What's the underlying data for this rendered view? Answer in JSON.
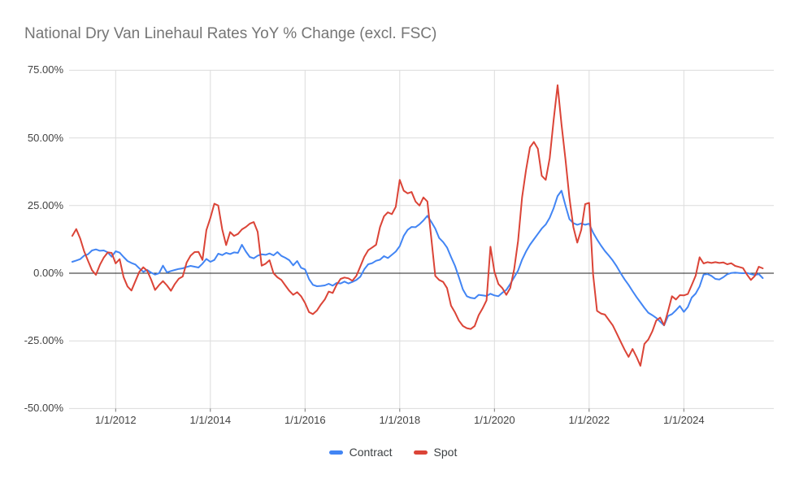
{
  "page": {
    "title": "National Dry Van Linehaul Rates YoY % Change (excl. FSC)"
  },
  "chart_data": {
    "type": "line",
    "title": "National Dry Van Linehaul Rates YoY % Change (excl. FSC)",
    "unit": "% year-over-year change",
    "frequency": "monthly",
    "start_month": "2011-02",
    "end_month": "2025-09",
    "grid": true,
    "ylim": [
      -50,
      75
    ],
    "legend_position": "bottom",
    "colors": {
      "contract": "#4285f4",
      "spot": "#db4437",
      "zero_line": "#212121",
      "gridline": "#dcdcdc",
      "title_text": "#757575",
      "axis_text": "#424242"
    },
    "y_axis": {
      "ticks": [
        {
          "value": 75,
          "label": "75.00%"
        },
        {
          "value": 50,
          "label": "50.00%"
        },
        {
          "value": 25,
          "label": "25.00%"
        },
        {
          "value": 0,
          "label": "0.00%"
        },
        {
          "value": -25,
          "label": "-25.00%"
        },
        {
          "value": -50,
          "label": "-50.00%"
        }
      ]
    },
    "x_axis": {
      "ticks": [
        {
          "label": "1/1/2012",
          "month_index": 11
        },
        {
          "label": "1/1/2014",
          "month_index": 35
        },
        {
          "label": "1/1/2016",
          "month_index": 59
        },
        {
          "label": "1/1/2018",
          "month_index": 83
        },
        {
          "label": "1/1/2020",
          "month_index": 107
        },
        {
          "label": "1/1/2022",
          "month_index": 131
        },
        {
          "label": "1/1/2024",
          "month_index": 155
        }
      ]
    },
    "series": [
      {
        "name": "Contract",
        "color": "#4285f4",
        "values": [
          4.2,
          4.7,
          5.2,
          6.5,
          7.0,
          8.4,
          8.8,
          8.3,
          8.4,
          7.7,
          6.1,
          8.1,
          7.6,
          6.0,
          4.5,
          3.8,
          3.2,
          1.8,
          0.5,
          1.2,
          0.2,
          -0.5,
          0.0,
          2.8,
          0.3,
          0.8,
          1.2,
          1.6,
          1.8,
          2.3,
          2.7,
          2.4,
          2.1,
          3.5,
          5.3,
          4.2,
          4.9,
          7.2,
          6.7,
          7.5,
          7.1,
          7.7,
          7.5,
          10.5,
          8.0,
          6.0,
          5.5,
          6.5,
          7.0,
          6.8,
          7.3,
          6.6,
          7.8,
          6.4,
          5.7,
          4.8,
          2.9,
          4.5,
          2.0,
          1.4,
          -2.2,
          -4.3,
          -4.8,
          -4.7,
          -4.5,
          -3.9,
          -4.6,
          -3.6,
          -3.8,
          -3.1,
          -3.8,
          -3.2,
          -2.5,
          -1.3,
          1.4,
          3.3,
          3.7,
          4.6,
          5.0,
          6.3,
          5.6,
          6.8,
          8.0,
          10.0,
          13.8,
          16.0,
          17.1,
          17.0,
          18.1,
          19.5,
          21.2,
          19.0,
          16.5,
          13.0,
          11.5,
          9.5,
          6.0,
          2.7,
          -1.5,
          -6.0,
          -8.5,
          -9.1,
          -9.3,
          -8.0,
          -8.2,
          -8.4,
          -7.6,
          -8.2,
          -8.5,
          -7.2,
          -6.2,
          -4.0,
          -1.5,
          1.0,
          5.0,
          8.0,
          10.5,
          12.5,
          14.5,
          16.5,
          18.0,
          20.5,
          24.0,
          28.5,
          30.5,
          25.0,
          20.0,
          18.5,
          17.9,
          18.4,
          17.9,
          18.3,
          15.0,
          12.5,
          10.2,
          8.2,
          6.5,
          4.7,
          2.5,
          0.0,
          -2.3,
          -4.3,
          -6.6,
          -8.8,
          -10.8,
          -12.8,
          -14.6,
          -15.5,
          -16.5,
          -17.9,
          -19.3,
          -15.8,
          -15.1,
          -13.7,
          -12.1,
          -14.3,
          -12.5,
          -9.0,
          -7.5,
          -4.9,
          -0.5,
          -0.3,
          -1.0,
          -2.1,
          -2.3,
          -1.5,
          -0.4,
          0.1,
          0.2,
          0.1,
          0.0,
          0.1,
          -0.3,
          -0.7,
          -0.3,
          -1.8
        ]
      },
      {
        "name": "Spot",
        "color": "#db4437",
        "values": [
          13.8,
          16.3,
          12.9,
          8.1,
          4.6,
          1.1,
          -0.6,
          3.1,
          5.8,
          7.7,
          7.5,
          3.6,
          5.2,
          -1.4,
          -4.9,
          -6.4,
          -2.9,
          0.5,
          2.2,
          0.9,
          -2.4,
          -6.2,
          -4.4,
          -2.9,
          -4.5,
          -6.5,
          -4.0,
          -2.0,
          -1.2,
          4.0,
          6.5,
          7.8,
          7.9,
          4.9,
          15.9,
          20.4,
          25.7,
          25.0,
          16.2,
          10.4,
          15.2,
          13.8,
          14.5,
          16.2,
          17.1,
          18.3,
          18.9,
          15.3,
          2.8,
          3.5,
          4.8,
          0.0,
          -1.5,
          -2.5,
          -4.5,
          -6.5,
          -8.0,
          -7.0,
          -8.5,
          -11.0,
          -14.4,
          -15.1,
          -13.8,
          -11.6,
          -9.7,
          -6.8,
          -7.3,
          -4.3,
          -2.1,
          -1.6,
          -1.9,
          -2.8,
          -1.0,
          2.5,
          6.0,
          8.5,
          9.5,
          10.5,
          17.0,
          21.0,
          22.5,
          21.8,
          24.5,
          34.5,
          30.5,
          29.5,
          30.0,
          26.5,
          25.0,
          28.0,
          26.5,
          13.0,
          -1.0,
          -2.5,
          -3.2,
          -5.5,
          -12.0,
          -14.5,
          -17.5,
          -19.5,
          -20.3,
          -20.6,
          -19.5,
          -15.5,
          -13.0,
          -10.0,
          9.8,
          0.5,
          -4.0,
          -5.5,
          -8.0,
          -5.5,
          1.5,
          12.0,
          28.0,
          38.0,
          46.5,
          48.5,
          46.0,
          36.0,
          34.5,
          42.5,
          56.5,
          69.5,
          55.0,
          42.0,
          28.0,
          17.0,
          11.3,
          16.0,
          25.5,
          26.0,
          -0.5,
          -13.9,
          -14.9,
          -15.3,
          -17.3,
          -19.3,
          -22.3,
          -25.3,
          -28.3,
          -30.9,
          -28.0,
          -30.9,
          -34.2,
          -26.1,
          -24.5,
          -21.5,
          -17.5,
          -16.4,
          -19.2,
          -14.0,
          -8.5,
          -9.7,
          -8.1,
          -8.2,
          -7.7,
          -4.4,
          -0.9,
          5.9,
          3.6,
          4.1,
          3.8,
          4.1,
          3.8,
          4.0,
          3.3,
          3.7,
          2.7,
          2.3,
          1.9,
          -0.5,
          -2.5,
          -1.0,
          2.4,
          1.8
        ]
      }
    ]
  }
}
